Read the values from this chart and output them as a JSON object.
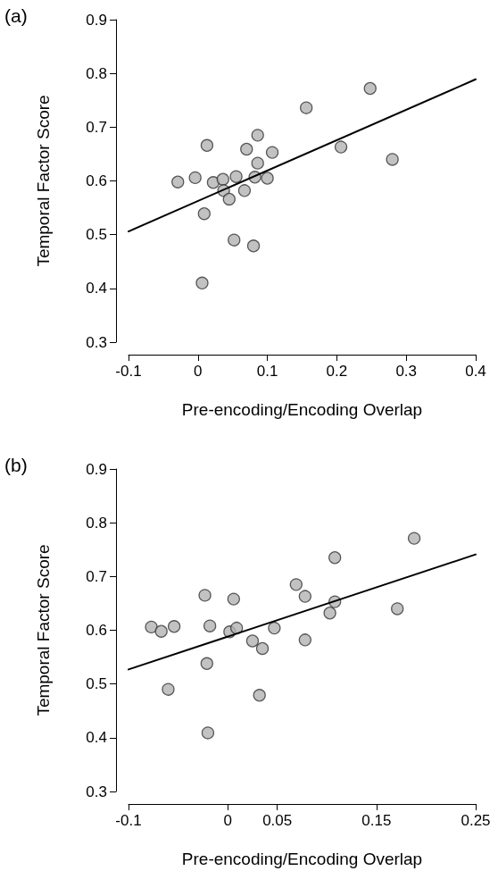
{
  "chart_data": [
    {
      "type": "scatter",
      "title": "(a)",
      "xlabel": "Pre-encoding/Encoding Overlap",
      "ylabel": "Temporal Factor Score",
      "xlim": [
        -0.1,
        0.4
      ],
      "xticks": [
        -0.1,
        0,
        0.1,
        0.2,
        0.3,
        0.4
      ],
      "ylim": [
        0.3,
        0.9
      ],
      "yticks": [
        0.3,
        0.4,
        0.5,
        0.6,
        0.7,
        0.8,
        0.9
      ],
      "grid": false,
      "marker": "circle",
      "series": [
        {
          "type": "scatter",
          "color": "#b3b3b3",
          "x": [
            -0.029,
            -0.004,
            0.013,
            0.022,
            0.036,
            0.037,
            0.045,
            0.055,
            0.009,
            0.052,
            0.006,
            0.08,
            0.07,
            0.086,
            0.086,
            0.082,
            0.067,
            0.1,
            0.107,
            0.156,
            0.206,
            0.248,
            0.28
          ],
          "values": [
            0.598,
            0.606,
            0.666,
            0.597,
            0.603,
            0.582,
            0.566,
            0.608,
            0.539,
            0.49,
            0.41,
            0.479,
            0.659,
            0.685,
            0.633,
            0.607,
            0.582,
            0.605,
            0.653,
            0.736,
            0.663,
            0.772,
            0.64
          ]
        },
        {
          "type": "line",
          "color": "#000000",
          "marker": "none",
          "line_style": "solid",
          "x": [
            -0.1,
            0.4
          ],
          "values": [
            0.506,
            0.789
          ]
        }
      ]
    },
    {
      "type": "scatter",
      "title": "(b)",
      "xlabel": "Pre-encoding/Encoding Overlap",
      "ylabel": "Temporal Factor Score",
      "xlim": [
        -0.1,
        0.25
      ],
      "xticks": [
        -0.1,
        0,
        0.05,
        0.15,
        0.25
      ],
      "ylim": [
        0.3,
        0.9
      ],
      "yticks": [
        0.3,
        0.4,
        0.5,
        0.6,
        0.7,
        0.8,
        0.9
      ],
      "grid": false,
      "marker": "circle",
      "series": [
        {
          "type": "scatter",
          "color": "#b3b3b3",
          "x": [
            -0.077,
            -0.067,
            -0.054,
            -0.06,
            -0.023,
            -0.018,
            -0.021,
            -0.02,
            0.006,
            0.002,
            0.009,
            0.025,
            0.035,
            0.032,
            0.047,
            0.069,
            0.078,
            0.078,
            0.103,
            0.108,
            0.108,
            0.171,
            0.188
          ],
          "values": [
            0.606,
            0.598,
            0.607,
            0.49,
            0.665,
            0.608,
            0.538,
            0.409,
            0.658,
            0.597,
            0.604,
            0.58,
            0.566,
            0.479,
            0.604,
            0.685,
            0.663,
            0.582,
            0.632,
            0.653,
            0.735,
            0.64,
            0.771
          ]
        },
        {
          "type": "line",
          "color": "#000000",
          "marker": "none",
          "line_style": "solid",
          "x": [
            -0.1,
            0.25
          ],
          "values": [
            0.527,
            0.741
          ]
        }
      ]
    }
  ]
}
